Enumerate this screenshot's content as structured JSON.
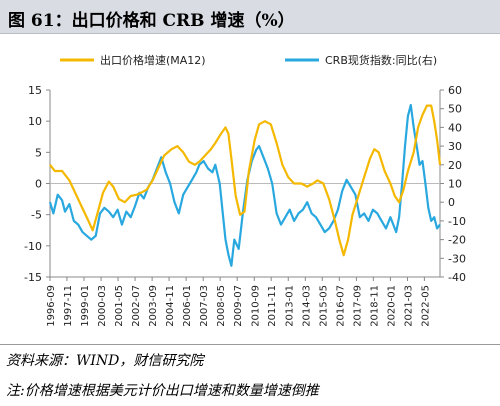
{
  "figure": {
    "title": "图 61：出口价格和 CRB 增速（%）"
  },
  "chart_data": {
    "type": "line",
    "legend_position": "top",
    "series": [
      {
        "name": "出口价格增速(MA12)",
        "color": "#f5b800",
        "axis": "left",
        "points": [
          [
            1996.67,
            3
          ],
          [
            1997.0,
            2
          ],
          [
            1997.5,
            2
          ],
          [
            1998.0,
            0.5
          ],
          [
            1998.5,
            -2
          ],
          [
            1998.9,
            -4
          ],
          [
            1999.3,
            -6
          ],
          [
            1999.6,
            -7.5
          ],
          [
            1999.9,
            -5
          ],
          [
            2000.3,
            -1.5
          ],
          [
            2000.7,
            0.3
          ],
          [
            2001.0,
            -0.5
          ],
          [
            2001.4,
            -2.5
          ],
          [
            2001.8,
            -3
          ],
          [
            2002.2,
            -2
          ],
          [
            2002.6,
            -1.8
          ],
          [
            2002.9,
            -1.5
          ],
          [
            2003.3,
            -1
          ],
          [
            2003.7,
            0.5
          ],
          [
            2004.0,
            2
          ],
          [
            2004.5,
            4.5
          ],
          [
            2005.0,
            5.5
          ],
          [
            2005.4,
            6
          ],
          [
            2005.8,
            5
          ],
          [
            2006.2,
            3.5
          ],
          [
            2006.6,
            3
          ],
          [
            2006.9,
            3.5
          ],
          [
            2007.3,
            4.5
          ],
          [
            2007.7,
            5.5
          ],
          [
            2008.0,
            6.5
          ],
          [
            2008.4,
            8
          ],
          [
            2008.7,
            9
          ],
          [
            2008.9,
            8
          ],
          [
            2009.1,
            4
          ],
          [
            2009.4,
            -2
          ],
          [
            2009.7,
            -5
          ],
          [
            2010.0,
            -4.5
          ],
          [
            2010.3,
            2
          ],
          [
            2010.7,
            7
          ],
          [
            2011.0,
            9.5
          ],
          [
            2011.4,
            10
          ],
          [
            2011.8,
            9.5
          ],
          [
            2012.2,
            6.5
          ],
          [
            2012.6,
            3
          ],
          [
            2013.0,
            1
          ],
          [
            2013.4,
            0
          ],
          [
            2013.9,
            0
          ],
          [
            2014.3,
            -0.5
          ],
          [
            2014.7,
            0
          ],
          [
            2015.0,
            0.5
          ],
          [
            2015.4,
            0
          ],
          [
            2015.8,
            -2.5
          ],
          [
            2016.2,
            -6
          ],
          [
            2016.5,
            -9
          ],
          [
            2016.8,
            -11.5
          ],
          [
            2017.1,
            -9
          ],
          [
            2017.4,
            -5
          ],
          [
            2017.8,
            -2
          ],
          [
            2018.2,
            1
          ],
          [
            2018.6,
            4
          ],
          [
            2018.9,
            5.5
          ],
          [
            2019.2,
            5
          ],
          [
            2019.6,
            2
          ],
          [
            2020.0,
            0
          ],
          [
            2020.3,
            -2
          ],
          [
            2020.6,
            -3
          ],
          [
            2020.9,
            -1
          ],
          [
            2021.2,
            2
          ],
          [
            2021.6,
            5
          ],
          [
            2021.9,
            9
          ],
          [
            2022.2,
            11
          ],
          [
            2022.5,
            12.5
          ],
          [
            2022.8,
            12.5
          ],
          [
            2023.0,
            10
          ],
          [
            2023.2,
            7
          ],
          [
            2023.4,
            3
          ]
        ]
      },
      {
        "name": "CRB现货指数:同比(右)",
        "color": "#29a8e0",
        "axis": "right",
        "points": [
          [
            1996.67,
            0
          ],
          [
            1996.9,
            -6
          ],
          [
            1997.2,
            4
          ],
          [
            1997.5,
            1
          ],
          [
            1997.7,
            -5
          ],
          [
            1998.0,
            -1
          ],
          [
            1998.3,
            -10
          ],
          [
            1998.6,
            -12
          ],
          [
            1998.9,
            -16
          ],
          [
            1999.2,
            -18
          ],
          [
            1999.5,
            -20
          ],
          [
            1999.8,
            -18
          ],
          [
            2000.1,
            -6
          ],
          [
            2000.4,
            -3
          ],
          [
            2000.7,
            -5
          ],
          [
            2001.0,
            -8
          ],
          [
            2001.3,
            -4
          ],
          [
            2001.6,
            -12
          ],
          [
            2001.9,
            -5
          ],
          [
            2002.2,
            -8
          ],
          [
            2002.5,
            -2
          ],
          [
            2002.8,
            5
          ],
          [
            2003.1,
            2
          ],
          [
            2003.4,
            8
          ],
          [
            2003.7,
            12
          ],
          [
            2004.0,
            18
          ],
          [
            2004.3,
            24
          ],
          [
            2004.6,
            16
          ],
          [
            2004.9,
            10
          ],
          [
            2005.2,
            0
          ],
          [
            2005.5,
            -6
          ],
          [
            2005.8,
            4
          ],
          [
            2006.1,
            8
          ],
          [
            2006.4,
            12
          ],
          [
            2006.7,
            16
          ],
          [
            2006.9,
            20
          ],
          [
            2007.2,
            22
          ],
          [
            2007.5,
            18
          ],
          [
            2007.8,
            16
          ],
          [
            2008.0,
            20
          ],
          [
            2008.3,
            10
          ],
          [
            2008.5,
            -5
          ],
          [
            2008.7,
            -20
          ],
          [
            2008.9,
            -28
          ],
          [
            2009.1,
            -34
          ],
          [
            2009.3,
            -20
          ],
          [
            2009.6,
            -25
          ],
          [
            2009.9,
            -5
          ],
          [
            2010.2,
            12
          ],
          [
            2010.5,
            22
          ],
          [
            2010.8,
            28
          ],
          [
            2011.0,
            30
          ],
          [
            2011.3,
            24
          ],
          [
            2011.6,
            18
          ],
          [
            2011.9,
            10
          ],
          [
            2012.2,
            -6
          ],
          [
            2012.5,
            -12
          ],
          [
            2012.8,
            -8
          ],
          [
            2013.1,
            -4
          ],
          [
            2013.4,
            -10
          ],
          [
            2013.7,
            -6
          ],
          [
            2014.0,
            -4
          ],
          [
            2014.3,
            0
          ],
          [
            2014.6,
            -6
          ],
          [
            2014.9,
            -8
          ],
          [
            2015.2,
            -12
          ],
          [
            2015.5,
            -16
          ],
          [
            2015.8,
            -14
          ],
          [
            2016.1,
            -10
          ],
          [
            2016.4,
            -4
          ],
          [
            2016.7,
            6
          ],
          [
            2017.0,
            12
          ],
          [
            2017.3,
            8
          ],
          [
            2017.6,
            4
          ],
          [
            2017.9,
            -8
          ],
          [
            2018.2,
            -6
          ],
          [
            2018.5,
            -10
          ],
          [
            2018.8,
            -4
          ],
          [
            2019.1,
            -6
          ],
          [
            2019.4,
            -10
          ],
          [
            2019.7,
            -14
          ],
          [
            2020.0,
            -8
          ],
          [
            2020.2,
            -12
          ],
          [
            2020.4,
            -16
          ],
          [
            2020.6,
            -8
          ],
          [
            2020.8,
            10
          ],
          [
            2021.0,
            30
          ],
          [
            2021.2,
            46
          ],
          [
            2021.4,
            52
          ],
          [
            2021.6,
            40
          ],
          [
            2021.8,
            30
          ],
          [
            2022.0,
            20
          ],
          [
            2022.2,
            22
          ],
          [
            2022.4,
            10
          ],
          [
            2022.6,
            -3
          ],
          [
            2022.8,
            -10
          ],
          [
            2023.0,
            -8
          ],
          [
            2023.2,
            -14
          ],
          [
            2023.4,
            -12
          ]
        ]
      }
    ],
    "x_tick_labels": [
      "1996-09",
      "1997-11",
      "1999-01",
      "2000-03",
      "2001-05",
      "2002-07",
      "2003-09",
      "2004-11",
      "2006-01",
      "2007-03",
      "2008-05",
      "2009-07",
      "2010-09",
      "2011-11",
      "2013-01",
      "2014-03",
      "2015-05",
      "2016-07",
      "2017-09",
      "2018-11",
      "2020-01",
      "2021-03",
      "2022-05"
    ],
    "x_tick_values": [
      1996.67,
      1997.83,
      1999.0,
      2000.17,
      2001.33,
      2002.5,
      2003.67,
      2004.83,
      2006.0,
      2007.17,
      2008.33,
      2009.5,
      2010.67,
      2011.83,
      2013.0,
      2014.17,
      2015.33,
      2016.5,
      2017.67,
      2018.83,
      2020.0,
      2021.17,
      2022.33
    ],
    "xlim": [
      1996.67,
      2023.4
    ],
    "y_left": {
      "ticks": [
        15,
        10,
        5,
        0,
        -5,
        -10,
        -15
      ],
      "lim": [
        -15,
        15
      ]
    },
    "y_right": {
      "ticks": [
        60,
        50,
        40,
        30,
        20,
        10,
        0,
        -10,
        -20,
        -30,
        -40
      ],
      "lim": [
        -40,
        60
      ]
    },
    "grid": false
  },
  "notes": {
    "source": "资料来源：WIND，财信研究院",
    "remark": "注:价格增速根据美元计价出口增速和数量增速倒推"
  }
}
